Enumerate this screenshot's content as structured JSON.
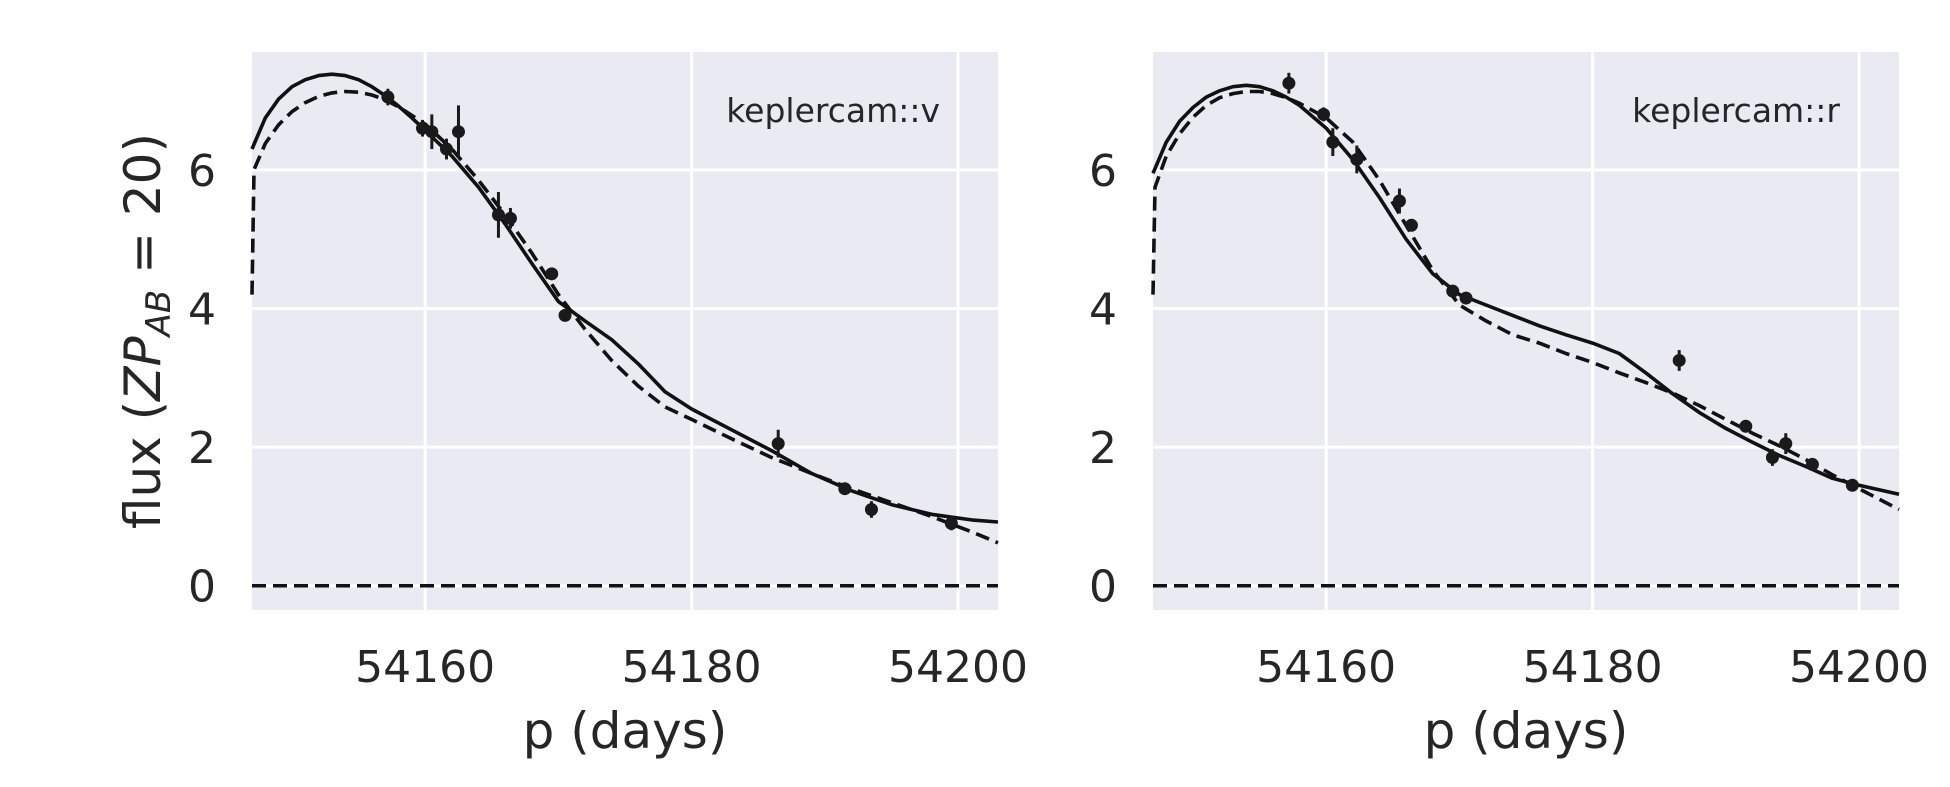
{
  "chart_data": [
    {
      "type": "scatter",
      "title": "",
      "band_label": "keplercam::v",
      "xlabel": "p (days)",
      "ylabel": "flux (ZP_AB = 20)",
      "ylabel_parts": {
        "prefix": "flux (",
        "sym": "ZP",
        "sub": "AB",
        "suffix": " = 20)"
      },
      "xlim": [
        54147,
        54203
      ],
      "ylim": [
        -0.35,
        7.7
      ],
      "xticks": [
        54160,
        54180,
        54200
      ],
      "yticks": [
        0,
        2,
        4,
        6
      ],
      "grid": true,
      "zero_line": true,
      "points": [
        {
          "x": 54157.2,
          "y": 7.05,
          "err": 0.12
        },
        {
          "x": 54159.8,
          "y": 6.6,
          "err": 0.12
        },
        {
          "x": 54160.5,
          "y": 6.55,
          "err": 0.25
        },
        {
          "x": 54161.6,
          "y": 6.3,
          "err": 0.15
        },
        {
          "x": 54162.5,
          "y": 6.55,
          "err": 0.38
        },
        {
          "x": 54165.5,
          "y": 5.35,
          "err": 0.33
        },
        {
          "x": 54166.4,
          "y": 5.3,
          "err": 0.15
        },
        {
          "x": 54169.5,
          "y": 4.5,
          "err": 0.08
        },
        {
          "x": 54170.5,
          "y": 3.9,
          "err": 0.08
        },
        {
          "x": 54186.5,
          "y": 2.05,
          "err": 0.2
        },
        {
          "x": 54191.5,
          "y": 1.4,
          "err": 0.06
        },
        {
          "x": 54193.5,
          "y": 1.1,
          "err": 0.12
        },
        {
          "x": 54199.5,
          "y": 0.9,
          "err": 0.1
        }
      ],
      "series": [
        {
          "style": "solid",
          "points": [
            [
              54147,
              6.3
            ],
            [
              54148,
              6.75
            ],
            [
              54149,
              7.02
            ],
            [
              54150,
              7.2
            ],
            [
              54151,
              7.3
            ],
            [
              54152,
              7.36
            ],
            [
              54153,
              7.38
            ],
            [
              54154,
              7.36
            ],
            [
              54155,
              7.3
            ],
            [
              54156,
              7.2
            ],
            [
              54157,
              7.07
            ],
            [
              54158,
              6.92
            ],
            [
              54159,
              6.75
            ],
            [
              54160,
              6.57
            ],
            [
              54162,
              6.2
            ],
            [
              54164,
              5.75
            ],
            [
              54166,
              5.22
            ],
            [
              54168,
              4.65
            ],
            [
              54170,
              4.1
            ],
            [
              54172,
              3.82
            ],
            [
              54174,
              3.55
            ],
            [
              54176,
              3.2
            ],
            [
              54178,
              2.8
            ],
            [
              54180,
              2.55
            ],
            [
              54183,
              2.25
            ],
            [
              54186,
              1.95
            ],
            [
              54189,
              1.62
            ],
            [
              54192,
              1.37
            ],
            [
              54195,
              1.17
            ],
            [
              54198,
              1.03
            ],
            [
              54201,
              0.95
            ],
            [
              54203,
              0.92
            ]
          ]
        },
        {
          "style": "dashed",
          "points": [
            [
              54147,
              4.2
            ],
            [
              54147.15,
              6.0
            ],
            [
              54148,
              6.38
            ],
            [
              54149,
              6.65
            ],
            [
              54150,
              6.84
            ],
            [
              54151,
              6.97
            ],
            [
              54152,
              7.06
            ],
            [
              54153,
              7.11
            ],
            [
              54154,
              7.13
            ],
            [
              54155,
              7.12
            ],
            [
              54156,
              7.08
            ],
            [
              54157,
              7.01
            ],
            [
              54158,
              6.91
            ],
            [
              54160,
              6.66
            ],
            [
              54162,
              6.3
            ],
            [
              54164,
              5.85
            ],
            [
              54166,
              5.35
            ],
            [
              54168,
              4.8
            ],
            [
              54170,
              4.2
            ],
            [
              54172,
              3.7
            ],
            [
              54174,
              3.25
            ],
            [
              54176,
              2.88
            ],
            [
              54178,
              2.58
            ],
            [
              54180,
              2.4
            ],
            [
              54183,
              2.12
            ],
            [
              54186,
              1.85
            ],
            [
              54189,
              1.62
            ],
            [
              54192,
              1.4
            ],
            [
              54195,
              1.2
            ],
            [
              54198,
              1.0
            ],
            [
              54201,
              0.78
            ],
            [
              54203,
              0.62
            ]
          ]
        }
      ]
    },
    {
      "type": "scatter",
      "title": "",
      "band_label": "keplercam::r",
      "xlabel": "p (days)",
      "ylabel": "",
      "xlim": [
        54147,
        54203
      ],
      "ylim": [
        -0.35,
        7.7
      ],
      "xticks": [
        54160,
        54180,
        54200
      ],
      "yticks": [
        0,
        2,
        4,
        6
      ],
      "grid": true,
      "zero_line": true,
      "points": [
        {
          "x": 54157.2,
          "y": 7.25,
          "err": 0.15
        },
        {
          "x": 54159.8,
          "y": 6.8,
          "err": 0.1
        },
        {
          "x": 54160.5,
          "y": 6.4,
          "err": 0.2
        },
        {
          "x": 54162.3,
          "y": 6.15,
          "err": 0.2
        },
        {
          "x": 54165.5,
          "y": 5.55,
          "err": 0.18
        },
        {
          "x": 54166.4,
          "y": 5.2,
          "err": 0.08
        },
        {
          "x": 54169.5,
          "y": 4.25,
          "err": 0.05
        },
        {
          "x": 54170.5,
          "y": 4.15,
          "err": 0.05
        },
        {
          "x": 54186.5,
          "y": 3.25,
          "err": 0.15
        },
        {
          "x": 54191.5,
          "y": 2.3,
          "err": 0.06
        },
        {
          "x": 54193.5,
          "y": 1.85,
          "err": 0.12
        },
        {
          "x": 54194.5,
          "y": 2.05,
          "err": 0.15
        },
        {
          "x": 54196.5,
          "y": 1.75,
          "err": 0.08
        },
        {
          "x": 54199.5,
          "y": 1.45,
          "err": 0.06
        }
      ],
      "series": [
        {
          "style": "solid",
          "points": [
            [
              54147,
              5.95
            ],
            [
              54148,
              6.4
            ],
            [
              54149,
              6.7
            ],
            [
              54150,
              6.9
            ],
            [
              54151,
              7.05
            ],
            [
              54152,
              7.14
            ],
            [
              54153,
              7.2
            ],
            [
              54154,
              7.22
            ],
            [
              54155,
              7.2
            ],
            [
              54156,
              7.14
            ],
            [
              54157,
              7.05
            ],
            [
              54158,
              6.93
            ],
            [
              54160,
              6.6
            ],
            [
              54162,
              6.15
            ],
            [
              54164,
              5.6
            ],
            [
              54166,
              5.0
            ],
            [
              54168,
              4.5
            ],
            [
              54170,
              4.2
            ],
            [
              54172,
              4.05
            ],
            [
              54174,
              3.9
            ],
            [
              54176,
              3.75
            ],
            [
              54178,
              3.62
            ],
            [
              54180,
              3.5
            ],
            [
              54182,
              3.35
            ],
            [
              54184,
              3.07
            ],
            [
              54186,
              2.77
            ],
            [
              54188,
              2.5
            ],
            [
              54190,
              2.27
            ],
            [
              54192,
              2.07
            ],
            [
              54194,
              1.88
            ],
            [
              54196,
              1.72
            ],
            [
              54198,
              1.55
            ],
            [
              54200,
              1.45
            ],
            [
              54203,
              1.32
            ]
          ]
        },
        {
          "style": "dashed",
          "points": [
            [
              54147,
              4.2
            ],
            [
              54147.15,
              5.75
            ],
            [
              54148,
              6.2
            ],
            [
              54149,
              6.52
            ],
            [
              54150,
              6.76
            ],
            [
              54151,
              6.93
            ],
            [
              54152,
              7.04
            ],
            [
              54153,
              7.1
            ],
            [
              54154,
              7.13
            ],
            [
              54155,
              7.13
            ],
            [
              54156,
              7.1
            ],
            [
              54157,
              7.04
            ],
            [
              54158,
              6.96
            ],
            [
              54160,
              6.75
            ],
            [
              54162,
              6.4
            ],
            [
              54164,
              5.85
            ],
            [
              54166,
              5.2
            ],
            [
              54168,
              4.55
            ],
            [
              54170,
              4.05
            ],
            [
              54172,
              3.82
            ],
            [
              54174,
              3.62
            ],
            [
              54176,
              3.5
            ],
            [
              54178,
              3.35
            ],
            [
              54180,
              3.22
            ],
            [
              54182,
              3.07
            ],
            [
              54184,
              2.93
            ],
            [
              54186,
              2.78
            ],
            [
              54188,
              2.6
            ],
            [
              54190,
              2.4
            ],
            [
              54192,
              2.2
            ],
            [
              54194,
              2.02
            ],
            [
              54196,
              1.82
            ],
            [
              54198,
              1.6
            ],
            [
              54200,
              1.4
            ],
            [
              54203,
              1.1
            ]
          ]
        }
      ]
    }
  ]
}
